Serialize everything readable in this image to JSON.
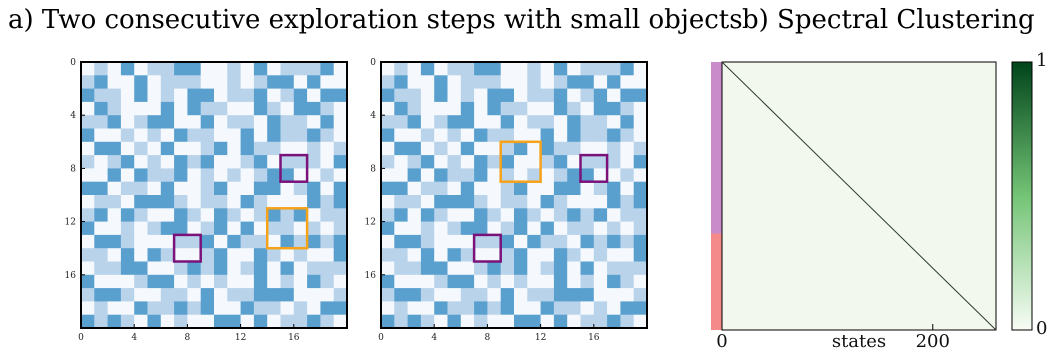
{
  "titles": {
    "a": "a) Two consecutive exploration steps with small objects",
    "b": "b) Spectral Clustering"
  },
  "colors": {
    "dark_cell": "#5aa0cf",
    "light_cell": "#b9d3ea",
    "empty_cell": "#f5f9fd",
    "orange_box": "#f6a21a",
    "purple_box": "#7a127a",
    "matrix_bg": "#f2f8ee",
    "cluster_1": "#c98bc9",
    "cluster_2": "#f58a8a",
    "cmap_low": "#f7fcf5",
    "cmap_high": "#00441b"
  },
  "chart_data": [
    {
      "type": "heatmap",
      "panel": "a-left",
      "grid_size": 20,
      "xticks": [
        "0",
        "4",
        "8",
        "12",
        "16"
      ],
      "yticks": [
        "0",
        "4",
        "8",
        "12",
        "16"
      ],
      "rows": [
        "01020112200102011120",
        "12002011100101220200",
        "21102010220112012022",
        "02100020211002102210",
        "11201220020110211020",
        "20010102110020211210",
        "02201020012021100101",
        "10120102120012011102",
        "00202112010101220010",
        "22011020012002201202",
        "01102221011021000212",
        "12021002102101212011",
        "20010122012020110101",
        "02210001120211021212",
        "11020210012002101002",
        "01122001212012020111",
        "20001220101002010210",
        "12210011020112220001",
        "01002112120021101022",
        "21210201002202011210"
      ],
      "orange_boxes": [
        {
          "col": 14,
          "row": 11,
          "size": 3
        }
      ],
      "purple_boxes": [
        {
          "col": 15,
          "row": 7,
          "size": 2
        },
        {
          "col": 7,
          "row": 13,
          "size": 2
        }
      ]
    },
    {
      "type": "heatmap",
      "panel": "a-right",
      "grid_size": 20,
      "xticks": [
        "0",
        "4",
        "8",
        "12",
        "16"
      ],
      "yticks": [
        "0",
        "4",
        "8",
        "12",
        "16"
      ],
      "rows": [
        "01020112200102011120",
        "12002011100101220200",
        "21102010220112012022",
        "02100020211002102210",
        "11201220020110211020",
        "20010102110020211210",
        "02201020012021100101",
        "10120102120012011102",
        "00202112010101220010",
        "22011020012002201202",
        "01102221011021000212",
        "12021002102101212011",
        "20010122012020110101",
        "02210001120211021212",
        "11020210012002101002",
        "01122001212012020111",
        "20001220101002010210",
        "12210011020112220001",
        "01002112120021101022",
        "21210201002202011210"
      ],
      "orange_boxes": [
        {
          "col": 9,
          "row": 6,
          "size": 3
        }
      ],
      "purple_boxes": [
        {
          "col": 15,
          "row": 7,
          "size": 2
        },
        {
          "col": 7,
          "row": 13,
          "size": 2
        }
      ]
    },
    {
      "type": "heatmap",
      "panel": "b",
      "n_states": 260,
      "xlabel": "states",
      "xticks": [
        {
          "label": "0",
          "value": 0
        },
        {
          "label": "200",
          "value": 200
        }
      ],
      "diagonal": true,
      "cluster_split_fraction": 0.64,
      "colorbar": {
        "min": "0",
        "max": "1"
      }
    }
  ]
}
